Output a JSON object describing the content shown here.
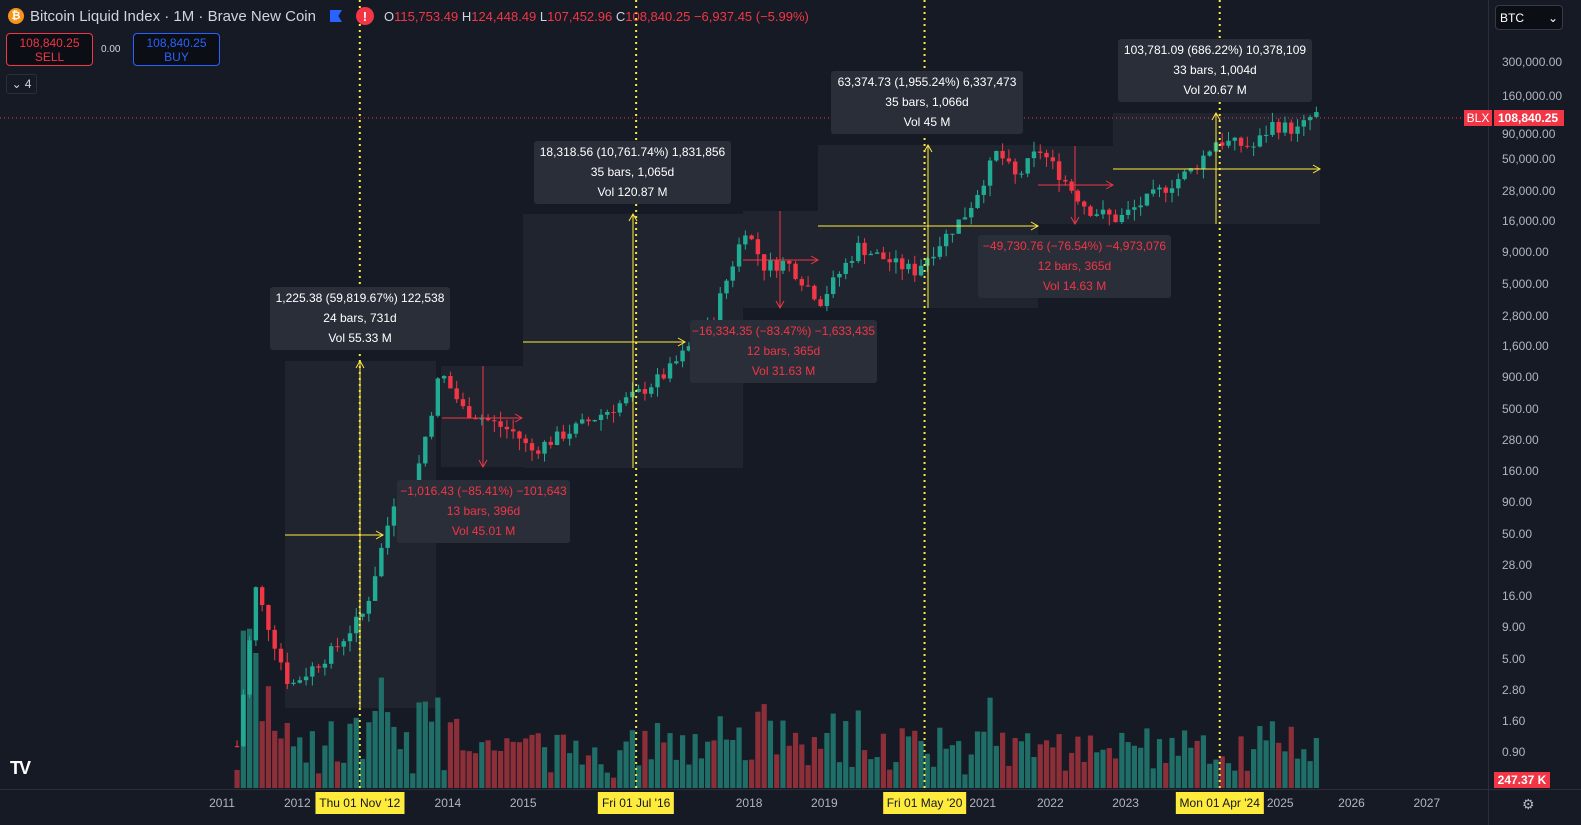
{
  "header": {
    "title": "Bitcoin Liquid Index · 1M · Brave New Coin",
    "coin_icon": "₿",
    "o_label": "O",
    "o": "115,753.49",
    "h_label": "H",
    "h": "124,448.49",
    "l_label": "L",
    "l": "107,452.96",
    "c_label": "C",
    "c": "108,840.25",
    "change": "−6,937.45 (−5.99%)"
  },
  "trade": {
    "sell_price": "108,840.25",
    "sell_label": "SELL",
    "spread": "0.00",
    "buy_price": "108,840.25",
    "buy_label": "BUY"
  },
  "indicators_count": "4",
  "symbol_select": "BTC",
  "price_axis": {
    "ticks": [
      300000,
      160000,
      90000,
      50000,
      28000,
      16000,
      9000,
      5000,
      2800,
      1600,
      900,
      500,
      280,
      160,
      90,
      50,
      28,
      16,
      9,
      5,
      2.8,
      1.6,
      0.9
    ],
    "tick_labels": [
      "300,000.00",
      "160,000.00",
      "90,000.00",
      "50,000.00",
      "28,000.00",
      "16,000.00",
      "9,000.00",
      "5,000.00",
      "2,800.00",
      "1,600.00",
      "900.00",
      "500.00",
      "280.00",
      "160.00",
      "90.00",
      "50.00",
      "28.00",
      "16.00",
      "9.00",
      "5.00",
      "2.80",
      "1.60",
      "0.90"
    ],
    "current_price": "108,840.25",
    "series_tag": "BLX",
    "volume_label": "247.37 K"
  },
  "time_axis": {
    "years": [
      "2011",
      "2012",
      "2014",
      "2015",
      "2018",
      "2019",
      "2021",
      "2022",
      "2023",
      "2025",
      "2026",
      "2027"
    ],
    "highlights": [
      {
        "label": "Thu 01 Nov '12",
        "t": 2012.83
      },
      {
        "label": "Fri 01 Jul '16",
        "t": 2016.5
      },
      {
        "label": "Fri 01 May '20",
        "t": 2020.33
      },
      {
        "label": "Mon 01 Apr '24",
        "t": 2024.25
      }
    ]
  },
  "measures": [
    {
      "type": "up",
      "line1": "1,225.38 (59,819.67%) 122,538",
      "line2": "24 bars, 731d",
      "line3": "Vol 55.33 M"
    },
    {
      "type": "down",
      "line1": "−1,016.43 (−85.41%) −101,643",
      "line2": "13 bars, 396d",
      "line3": "Vol 45.01 M"
    },
    {
      "type": "up",
      "line1": "18,318.56 (10,761.74%) 1,831,856",
      "line2": "35 bars, 1,065d",
      "line3": "Vol 120.87 M"
    },
    {
      "type": "down",
      "line1": "−16,334.35 (−83.47%) −1,633,435",
      "line2": "12 bars, 365d",
      "line3": "Vol 31.63 M"
    },
    {
      "type": "up",
      "line1": "63,374.73 (1,955.24%) 6,337,473",
      "line2": "35 bars, 1,066d",
      "line3": "Vol 45 M"
    },
    {
      "type": "down",
      "line1": "−49,730.76 (−76.54%) −4,973,076",
      "line2": "12 bars, 365d",
      "line3": "Vol 14.63 M"
    },
    {
      "type": "up",
      "line1": "103,781.09 (686.22%) 10,378,109",
      "line2": "33 bars, 1,004d",
      "line3": "Vol 20.67 M"
    }
  ],
  "colors": {
    "up": "#22ab94",
    "down": "#f23645",
    "vol_up": "#1f6e67",
    "vol_down": "#8c2f39",
    "accent": "#ffeb3b",
    "bg": "#161a25"
  },
  "chart_data": {
    "type": "candlestick",
    "title": "Bitcoin Liquid Index · 1M · Brave New Coin",
    "scale": "log",
    "ylim": [
      0.9,
      320000
    ],
    "xlim": [
      2010.2,
      2027.5
    ],
    "price_anchors": [
      [
        2011.2,
        1
      ],
      [
        2011.45,
        18
      ],
      [
        2011.9,
        3
      ],
      [
        2012.5,
        6
      ],
      [
        2012.9,
        12
      ],
      [
        2013.3,
        100
      ],
      [
        2013.5,
        90
      ],
      [
        2013.9,
        1000
      ],
      [
        2014.2,
        500
      ],
      [
        2014.9,
        320
      ],
      [
        2015.1,
        230
      ],
      [
        2015.8,
        380
      ],
      [
        2016.5,
        650
      ],
      [
        2016.9,
        960
      ],
      [
        2017.5,
        2500
      ],
      [
        2017.95,
        14000
      ],
      [
        2018.2,
        7000
      ],
      [
        2018.5,
        7500
      ],
      [
        2018.95,
        3700
      ],
      [
        2019.45,
        10000
      ],
      [
        2019.95,
        7200
      ],
      [
        2020.2,
        6400
      ],
      [
        2020.9,
        19000
      ],
      [
        2021.3,
        58000
      ],
      [
        2021.55,
        35000
      ],
      [
        2021.85,
        60000
      ],
      [
        2022.0,
        47000
      ],
      [
        2022.5,
        20000
      ],
      [
        2022.9,
        16500
      ],
      [
        2023.5,
        29000
      ],
      [
        2023.9,
        42000
      ],
      [
        2024.2,
        70000
      ],
      [
        2024.7,
        63000
      ],
      [
        2024.95,
        95000
      ],
      [
        2025.3,
        85000
      ],
      [
        2025.5,
        115753
      ],
      [
        2025.6,
        108840
      ]
    ]
  }
}
